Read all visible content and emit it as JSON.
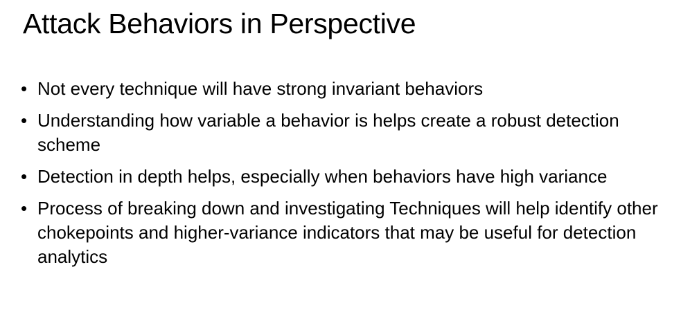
{
  "slide": {
    "title": "Attack Behaviors in Perspective",
    "bullet_symbol": "•",
    "bullets": [
      "Not every technique will have strong invariant behaviors",
      "Understanding how variable a behavior is helps create a robust detection scheme",
      "Detection in depth helps, especially when behaviors have high variance",
      "Process of breaking down and investigating Techniques will help identify other chokepoints and higher-variance indicators that may be useful for detection analytics"
    ]
  }
}
